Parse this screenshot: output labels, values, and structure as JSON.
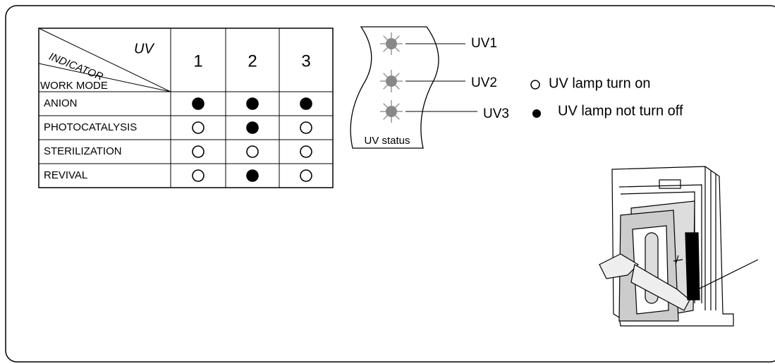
{
  "table": {
    "corner": {
      "top": "UV",
      "middle": "INDICATOR",
      "bottom": "WORK MODE"
    },
    "columns": [
      "1",
      "2",
      "3"
    ],
    "rows": [
      {
        "mode": "ANION",
        "filled": [
          true,
          true,
          true
        ]
      },
      {
        "mode": "PHOTOCATALYSIS",
        "filled": [
          false,
          true,
          false
        ]
      },
      {
        "mode": "STERILIZATION",
        "filled": [
          false,
          false,
          false
        ]
      },
      {
        "mode": "REVIVAL",
        "filled": [
          false,
          true,
          false
        ]
      }
    ]
  },
  "status": {
    "label": "UV status",
    "lamps": [
      "UV1",
      "UV2",
      "UV3"
    ]
  },
  "legend": {
    "open": "UV lamp turn on",
    "filled": "UV lamp not turn off"
  }
}
